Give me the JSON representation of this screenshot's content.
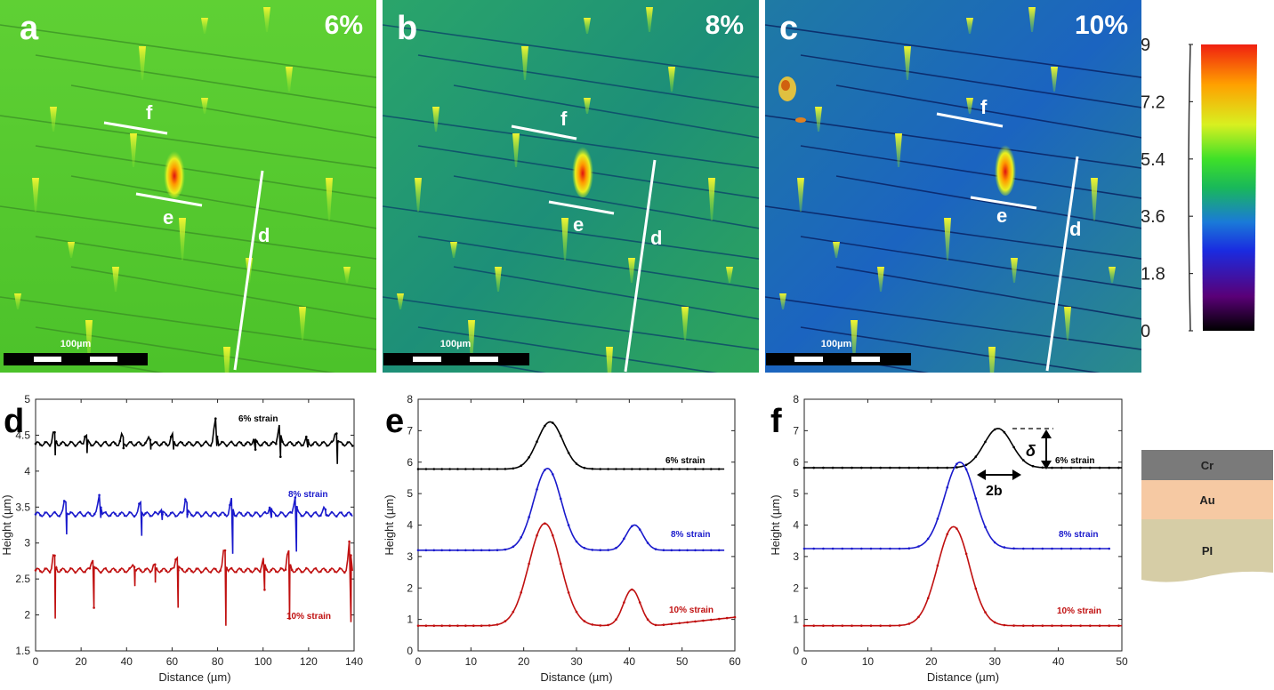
{
  "maps": [
    {
      "letter": "a",
      "strain": "6%",
      "scalebar": "100µm",
      "lines": [
        "f",
        "e",
        "d"
      ]
    },
    {
      "letter": "b",
      "strain": "8%",
      "scalebar": "100µm",
      "lines": [
        "f",
        "e",
        "d"
      ]
    },
    {
      "letter": "c",
      "strain": "10%",
      "scalebar": "100µm",
      "lines": [
        "f",
        "e",
        "d"
      ]
    }
  ],
  "colorbar": {
    "ticks": [
      "9",
      "7.2",
      "5.4",
      "3.6",
      "1.8",
      "0"
    ],
    "range": [
      0,
      9
    ],
    "colors": [
      "#000000",
      "#5a0077",
      "#1a2be0",
      "#1a7ad8",
      "#19b85a",
      "#3fe028",
      "#d8f020",
      "#ffa000",
      "#f02010"
    ]
  },
  "layers": [
    "Cr",
    "Au",
    "PI"
  ],
  "annotations": {
    "delta": "δ",
    "width": "2b"
  },
  "chart_data": [
    {
      "panel": "d",
      "type": "line",
      "xlabel": "Distance (µm)",
      "ylabel": "Height (µm)",
      "xlim": [
        0,
        140
      ],
      "ylim": [
        1.5,
        5
      ],
      "xticks": [
        "0",
        "20",
        "40",
        "60",
        "80",
        "100",
        "120",
        "140"
      ],
      "yticks": [
        "1.5",
        "2",
        "2.5",
        "3",
        "3.5",
        "4",
        "4.5",
        "5"
      ],
      "series": [
        {
          "name": "6% strain",
          "color": "#000000",
          "base": 4.38,
          "spikes": [
            [
              8,
              4.55,
              4.22
            ],
            [
              22,
              4.52,
              4.25
            ],
            [
              38,
              4.5,
              4.32
            ],
            [
              50,
              4.48,
              4.3
            ],
            [
              60,
              4.5,
              4.3
            ],
            [
              79,
              4.72,
              4.35
            ],
            [
              96,
              4.46,
              4.3
            ],
            [
              107,
              4.65,
              4.2
            ],
            [
              119,
              4.45,
              4.33
            ],
            [
              132,
              4.58,
              4.1
            ]
          ]
        },
        {
          "name": "8% strain",
          "color": "#1a1acc",
          "base": 3.4,
          "spikes": [
            [
              13,
              3.62,
              3.12
            ],
            [
              28,
              3.68,
              3.35
            ],
            [
              46,
              3.58,
              3.1
            ],
            [
              55,
              3.48,
              3.32
            ],
            [
              66,
              3.65,
              3.35
            ],
            [
              86,
              3.6,
              2.85
            ],
            [
              103,
              3.52,
              3.35
            ],
            [
              114,
              3.66,
              2.88
            ],
            [
              127,
              3.48,
              3.38
            ]
          ]
        },
        {
          "name": "10% strain",
          "color": "#c01010",
          "base": 2.62,
          "spikes": [
            [
              8,
              2.85,
              1.95
            ],
            [
              25,
              2.8,
              2.1
            ],
            [
              43,
              2.72,
              2.4
            ],
            [
              52,
              2.7,
              2.45
            ],
            [
              62,
              2.85,
              2.1
            ],
            [
              83,
              2.95,
              1.85
            ],
            [
              100,
              2.78,
              2.35
            ],
            [
              111,
              2.92,
              1.95
            ],
            [
              138,
              3.0,
              1.9
            ]
          ]
        }
      ]
    },
    {
      "panel": "e",
      "type": "line",
      "xlabel": "Distance (µm)",
      "ylabel": "Height (µm)",
      "xlim": [
        0,
        60
      ],
      "ylim": [
        0,
        8
      ],
      "xticks": [
        "0",
        "10",
        "20",
        "30",
        "40",
        "50",
        "60"
      ],
      "yticks": [
        "0",
        "1",
        "2",
        "3",
        "4",
        "5",
        "6",
        "7",
        "8"
      ],
      "series": [
        {
          "name": "6% strain",
          "color": "#000000",
          "base": 5.78,
          "xmax": 58,
          "peaks": [
            [
              25,
              1.5,
              2.4
            ]
          ]
        },
        {
          "name": "8% strain",
          "color": "#1a1acc",
          "base": 3.2,
          "xmax": 58,
          "peaks": [
            [
              24.5,
              2.6,
              2.6
            ],
            [
              41,
              0.8,
              1.6
            ]
          ]
        },
        {
          "name": "10% strain",
          "color": "#c01010",
          "base": 0.8,
          "xmax": 60,
          "peaks": [
            [
              24,
              3.25,
              3.0
            ],
            [
              40.5,
              1.15,
              1.6
            ]
          ]
        }
      ]
    },
    {
      "panel": "f",
      "type": "line",
      "xlabel": "Distance (µm)",
      "ylabel": "Height (µm)",
      "xlim": [
        0,
        50
      ],
      "ylim": [
        0,
        8
      ],
      "xticks": [
        "0",
        "10",
        "20",
        "30",
        "40",
        "50"
      ],
      "yticks": [
        "0",
        "1",
        "2",
        "3",
        "4",
        "5",
        "6",
        "7",
        "8"
      ],
      "series": [
        {
          "name": "6% strain",
          "color": "#000000",
          "base": 5.82,
          "xmax": 50,
          "peaks": [
            [
              30.5,
              1.25,
              2.2
            ]
          ]
        },
        {
          "name": "8% strain",
          "color": "#1a1acc",
          "base": 3.25,
          "xmax": 48,
          "peaks": [
            [
              24.5,
              2.75,
              2.4
            ]
          ]
        },
        {
          "name": "10% strain",
          "color": "#c01010",
          "base": 0.8,
          "xmax": 50,
          "peaks": [
            [
              23.5,
              3.15,
              2.5
            ]
          ]
        }
      ]
    }
  ]
}
